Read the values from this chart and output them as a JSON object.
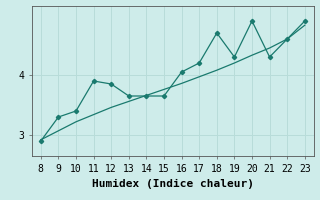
{
  "xlabel": "Humidex (Indice chaleur)",
  "ylabel": "",
  "background_color": "#ceecea",
  "grid_color": "#b8dcd9",
  "line_color": "#1a7a6e",
  "x_data": [
    8,
    9,
    10,
    11,
    12,
    13,
    14,
    15,
    16,
    17,
    18,
    19,
    20,
    21,
    22,
    23
  ],
  "y_data": [
    2.9,
    3.3,
    3.4,
    3.9,
    3.85,
    3.65,
    3.65,
    3.65,
    4.05,
    4.2,
    4.7,
    4.3,
    4.9,
    4.3,
    4.6,
    4.9
  ],
  "y_trend": [
    2.92,
    3.07,
    3.22,
    3.34,
    3.46,
    3.56,
    3.66,
    3.76,
    3.86,
    3.97,
    4.08,
    4.2,
    4.33,
    4.45,
    4.6,
    4.83
  ],
  "xlim": [
    7.5,
    23.5
  ],
  "ylim": [
    2.65,
    5.15
  ],
  "xticks": [
    8,
    9,
    10,
    11,
    12,
    13,
    14,
    15,
    16,
    17,
    18,
    19,
    20,
    21,
    22,
    23
  ],
  "yticks": [
    3,
    4
  ],
  "tick_fontsize": 7,
  "xlabel_fontsize": 8
}
